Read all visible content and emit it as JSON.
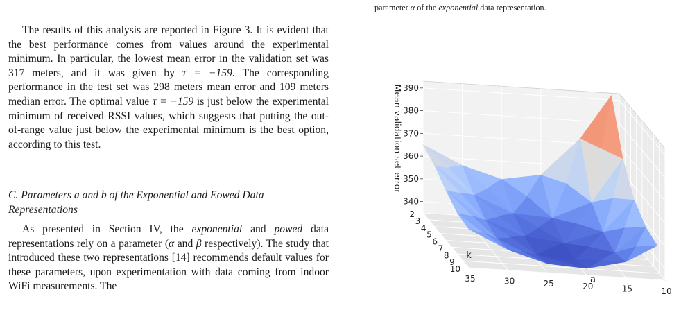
{
  "caption_tail": {
    "pre": "parameter ",
    "sym": "α",
    "mid": " of the ",
    "emph": "exponential",
    "post": " data representation."
  },
  "para1": {
    "s1": "The results of this analysis are reported in Figure 3. It is evident that the best performance comes from values around the experimental minimum. In particular, the lowest mean error in the validation set was 317 meters, and it was given by ",
    "m1": "τ = −159",
    "s2": ". The corresponding performance in the test set was 298 meters mean error and 109 meters median error. The optimal value ",
    "m2": "τ = −159",
    "s3": " is just below the experimental minimum of received RSSI values, which suggests that putting the out-of-range value just below the experimental minimum is the best option, according to this test."
  },
  "section_heading": "C. Parameters a and b of the Exponential and Eowed Data Representations",
  "para2": {
    "s1": "As presented in Section IV, the ",
    "e1": "exponential",
    "s2": " and ",
    "e2": "powed",
    "s3": " data representations rely on a parameter (",
    "m1": "α",
    "s4": " and ",
    "m2": "β",
    "s5": " respectively). The study that introduced these two representations [14] recommends default values for these parameters, upon experimentation with data coming from indoor WiFi measurements. The"
  },
  "chart_data": {
    "type": "surface3d",
    "zlabel": "Mean validation set error",
    "xlabel": "a",
    "ylabel": "k",
    "x_ticks": [
      "35",
      "30",
      "25",
      "20",
      "15",
      "10"
    ],
    "y_ticks": [
      "2",
      "3",
      "4",
      "5",
      "6",
      "7",
      "8",
      "9",
      "10"
    ],
    "z_ticks": [
      "340",
      "350",
      "360",
      "370",
      "380",
      "390"
    ],
    "zlim": [
      335,
      393
    ],
    "colormap": [
      "#3b4cc0",
      "#b40426"
    ],
    "a_values": [
      35,
      31,
      27,
      23,
      19,
      15,
      11
    ],
    "k_values": [
      2,
      4,
      6,
      8,
      10
    ],
    "z_values": [
      [
        365,
        357,
        352,
        355,
        372,
        392
      ],
      [
        362,
        350,
        343,
        342,
        350,
        370
      ],
      [
        357,
        345,
        339,
        337,
        343,
        358
      ],
      [
        353,
        343,
        337,
        336,
        340,
        352
      ],
      [
        352,
        344,
        339,
        338,
        342,
        350
      ]
    ],
    "surface_a": [
      35,
      30,
      25,
      20,
      15,
      11
    ],
    "grid": true
  }
}
